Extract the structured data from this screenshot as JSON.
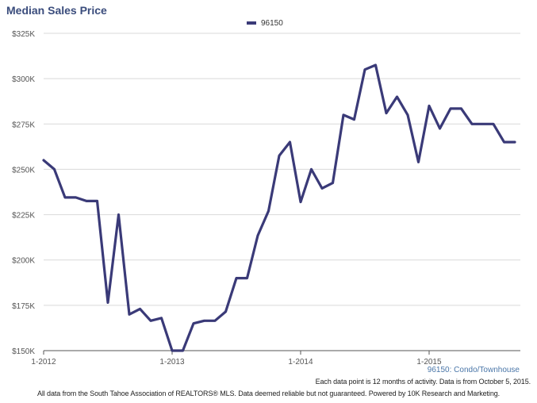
{
  "title": "Median Sales Price",
  "series_label": "96150: Condo/Townhouse",
  "note": "Each data point is 12 months of activity. Data is from October 5, 2015.",
  "footer": "All data from the South Tahoe Association of REALTORS® MLS. Data deemed reliable but not guaranteed. Powered by 10K Research and Marketing.",
  "colors": {
    "series": "#3a3a78",
    "grid": "#d9d9d9",
    "axis": "#555555"
  },
  "chart_data": {
    "type": "line",
    "title": "Median Sales Price",
    "xlabel": "",
    "ylabel": "",
    "grid": true,
    "legend_position": "top-center",
    "x_ticks": [
      "1-2012",
      "1-2013",
      "1-2014",
      "1-2015"
    ],
    "y_ticks": [
      "$150K",
      "$175K",
      "$200K",
      "$225K",
      "$250K",
      "$275K",
      "$300K",
      "$325K"
    ],
    "ylim": [
      150000,
      325000
    ],
    "x": [
      "2012-01",
      "2012-02",
      "2012-03",
      "2012-04",
      "2012-05",
      "2012-06",
      "2012-07",
      "2012-08",
      "2012-09",
      "2012-10",
      "2012-11",
      "2012-12",
      "2013-01",
      "2013-02",
      "2013-03",
      "2013-04",
      "2013-05",
      "2013-06",
      "2013-07",
      "2013-08",
      "2013-09",
      "2013-10",
      "2013-11",
      "2013-12",
      "2014-01",
      "2014-02",
      "2014-03",
      "2014-04",
      "2014-05",
      "2014-06",
      "2014-07",
      "2014-08",
      "2014-09",
      "2014-10",
      "2014-11",
      "2014-12",
      "2015-01",
      "2015-02",
      "2015-03",
      "2015-04",
      "2015-05",
      "2015-06",
      "2015-07",
      "2015-08",
      "2015-09"
    ],
    "series": [
      {
        "name": "96150",
        "values": [
          255000,
          250000,
          234500,
          234500,
          232500,
          232500,
          176500,
          225000,
          170000,
          173000,
          166500,
          168000,
          150000,
          150000,
          165000,
          166500,
          166500,
          171500,
          190000,
          190000,
          213500,
          227000,
          257500,
          265000,
          232000,
          250000,
          239500,
          242500,
          280000,
          277500,
          305000,
          307500,
          281000,
          290000,
          280000,
          254000,
          285000,
          272500,
          283500,
          283500,
          275000,
          275000,
          275000,
          265000,
          265000
        ]
      }
    ]
  }
}
